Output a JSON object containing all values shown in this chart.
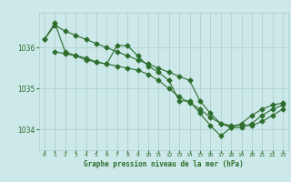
{
  "xlabel": "Graphe pression niveau de la mer (hPa)",
  "bg_color": "#cce8e8",
  "grid_color": "#aacccc",
  "line_color": "#2d6e2d",
  "xlim": [
    -0.5,
    23.5
  ],
  "ylim": [
    1033.5,
    1036.85
  ],
  "yticks": [
    1034,
    1035,
    1036
  ],
  "xticks": [
    0,
    1,
    2,
    3,
    4,
    5,
    6,
    7,
    8,
    9,
    10,
    11,
    12,
    13,
    14,
    15,
    16,
    17,
    18,
    19,
    20,
    21,
    22,
    23
  ],
  "line1_x": [
    0,
    1,
    2,
    3,
    4,
    5,
    6,
    7,
    8,
    9,
    10,
    11,
    12,
    13,
    14,
    15,
    16,
    17,
    18,
    19,
    20,
    21,
    22,
    23
  ],
  "line1_y": [
    1036.2,
    1036.6,
    1035.9,
    1035.8,
    1035.7,
    1035.65,
    1035.6,
    1035.55,
    1035.5,
    1035.45,
    1035.35,
    1035.2,
    1035.0,
    1034.8,
    1034.65,
    1034.5,
    1034.3,
    1034.15,
    1034.1,
    1034.1,
    1034.1,
    1034.2,
    1034.35,
    1034.5
  ],
  "line2_x": [
    1,
    2,
    3,
    4,
    5,
    6,
    7,
    8,
    9,
    10,
    11,
    12,
    13,
    14,
    15,
    16,
    17,
    18,
    19,
    20,
    21,
    22,
    23
  ],
  "line2_y": [
    1035.9,
    1035.85,
    1035.8,
    1035.75,
    1035.65,
    1035.6,
    1036.05,
    1036.05,
    1035.8,
    1035.55,
    1035.4,
    1035.2,
    1034.7,
    1034.7,
    1034.4,
    1034.1,
    1033.85,
    1034.05,
    1034.05,
    1034.15,
    1034.35,
    1034.5,
    1034.6
  ],
  "line3_x": [
    0,
    1,
    2,
    3,
    4,
    5,
    6,
    7,
    8,
    9,
    10,
    11,
    12,
    13,
    14,
    15,
    16,
    17,
    18,
    19,
    20,
    21,
    22,
    23
  ],
  "line3_y": [
    1036.2,
    1036.55,
    1036.4,
    1036.3,
    1036.2,
    1036.1,
    1036.0,
    1035.9,
    1035.8,
    1035.7,
    1035.6,
    1035.5,
    1035.4,
    1035.3,
    1035.2,
    1034.7,
    1034.4,
    1034.15,
    1034.05,
    1034.15,
    1034.35,
    1034.5,
    1034.6,
    1034.65
  ]
}
